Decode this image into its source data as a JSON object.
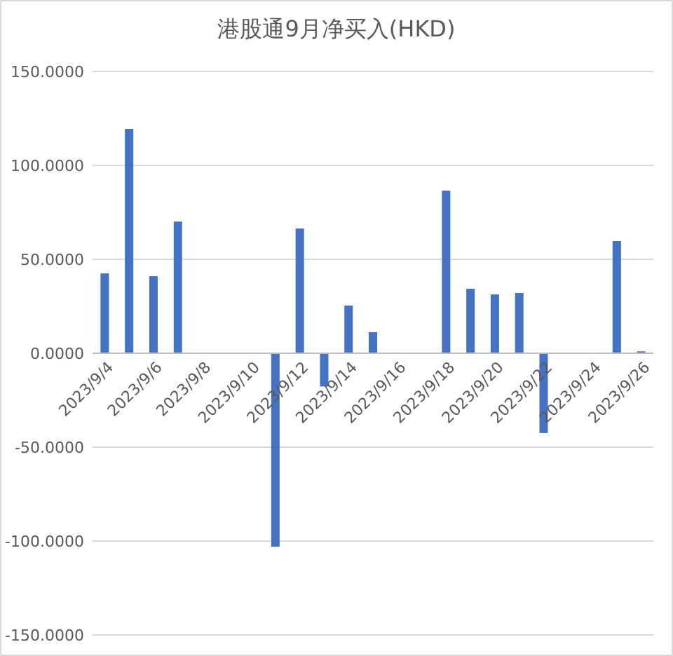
{
  "chart_data": {
    "type": "bar",
    "title": "港股通9月净买入(HKD)",
    "categories": [
      "2023/9/4",
      null,
      "2023/9/6",
      null,
      "2023/9/8",
      null,
      "2023/9/10",
      null,
      "2023/9/12",
      null,
      "2023/9/14",
      null,
      "2023/9/16",
      null,
      "2023/9/18",
      null,
      "2023/9/20",
      null,
      "2023/9/22",
      null,
      "2023/9/24",
      null,
      "2023/9/26"
    ],
    "values": [
      42.5,
      119.4,
      41,
      70.1,
      null,
      null,
      null,
      -103,
      66.4,
      -17.7,
      25.4,
      11.2,
      null,
      null,
      86.6,
      34.3,
      31.3,
      32.1,
      -42.5,
      null,
      null,
      59.7,
      1
    ],
    "color": "#4472c4",
    "ylim": [
      -150,
      150
    ],
    "yticks": [
      {
        "value": -150,
        "label": "-150.0000"
      },
      {
        "value": -100,
        "label": "-100.0000"
      },
      {
        "value": -50,
        "label": "-50.0000"
      },
      {
        "value": 0,
        "label": "0.0000"
      },
      {
        "value": 50,
        "label": "50.0000"
      },
      {
        "value": 100,
        "label": "100.0000"
      },
      {
        "value": 150,
        "label": "150.0000"
      }
    ],
    "grid": "y"
  }
}
